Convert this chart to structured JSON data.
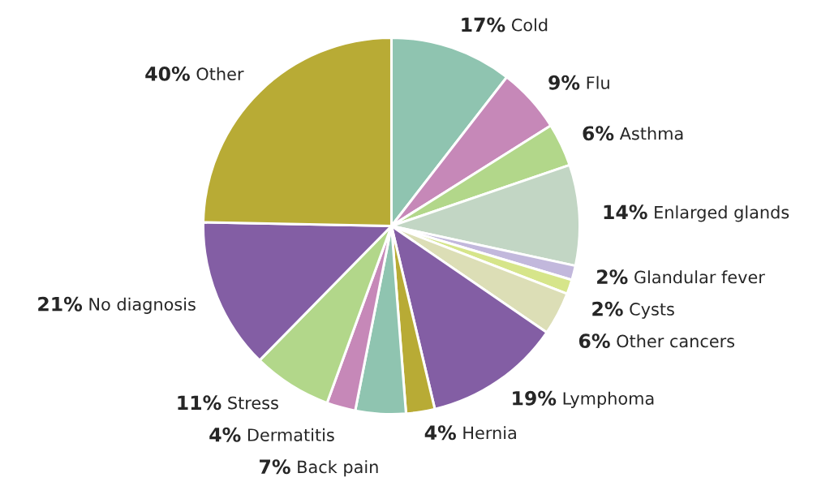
{
  "chart_data": {
    "type": "pie",
    "categories": [
      "Cold",
      "Flu",
      "Asthma",
      "Enlarged glands",
      "Glandular fever",
      "Cysts",
      "Other cancers",
      "Lymphoma",
      "Hernia",
      "Back pain",
      "Dermatitis",
      "Stress",
      "No diagnosis",
      "Other"
    ],
    "values": [
      17,
      9,
      6,
      14,
      2,
      2,
      6,
      19,
      4,
      7,
      4,
      11,
      21,
      40
    ],
    "value_labels": [
      "17%",
      "9%",
      "6%",
      "14%",
      "2%",
      "2%",
      "6%",
      "19%",
      "4%",
      "7%",
      "4%",
      "11%",
      "21%",
      "40%"
    ],
    "colors": [
      "#8fc4b0",
      "#c688b8",
      "#b2d78a",
      "#c2d6c4",
      "#c2b8dc",
      "#d6e58a",
      "#dcdeb6",
      "#835ea4",
      "#b8ab35",
      "#8fc4b0",
      "#c688b8",
      "#b2d78a",
      "#835ea4",
      "#b8ab35"
    ]
  }
}
